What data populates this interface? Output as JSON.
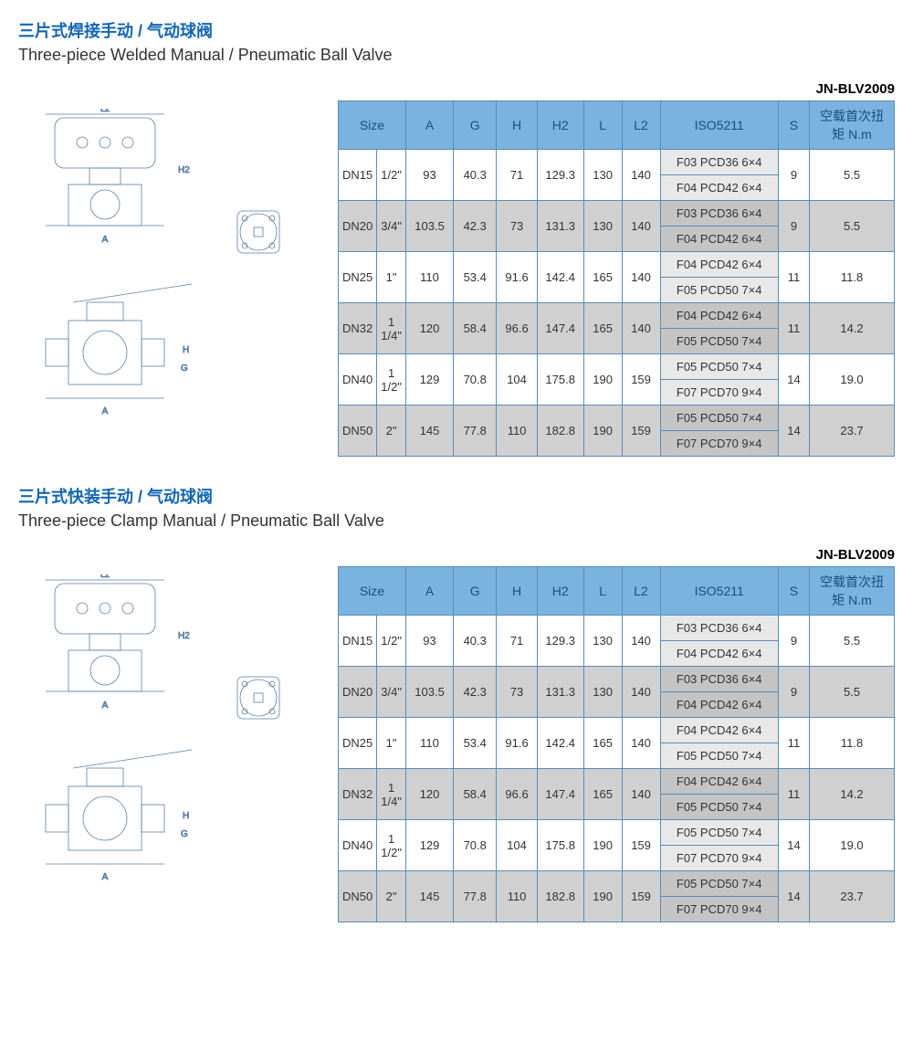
{
  "sections": [
    {
      "title_zh": "三片式焊接手动 / 气动球阀",
      "title_en": "Three-piece Welded Manual / Pneumatic Ball Valve",
      "model": "JN-BLV2009",
      "headers": [
        "Size",
        "",
        "A",
        "G",
        "H",
        "H2",
        "L",
        "L2",
        "ISO5211",
        "S",
        "空载首次扭矩 N.m"
      ],
      "rows": [
        {
          "alt": false,
          "size": "DN15",
          "inch": "1/2\"",
          "A": "93",
          "G": "40.3",
          "H": "71",
          "H2": "129.3",
          "L": "130",
          "L2": "140",
          "iso": [
            "F03  PCD36  6×4",
            "F04  PCD42  6×4"
          ],
          "S": "9",
          "torque": "5.5"
        },
        {
          "alt": true,
          "size": "DN20",
          "inch": "3/4\"",
          "A": "103.5",
          "G": "42.3",
          "H": "73",
          "H2": "131.3",
          "L": "130",
          "L2": "140",
          "iso": [
            "F03  PCD36  6×4",
            "F04  PCD42  6×4"
          ],
          "S": "9",
          "torque": "5.5"
        },
        {
          "alt": false,
          "size": "DN25",
          "inch": "1\"",
          "A": "110",
          "G": "53.4",
          "H": "91.6",
          "H2": "142.4",
          "L": "165",
          "L2": "140",
          "iso": [
            "F04  PCD42  6×4",
            "F05  PCD50  7×4"
          ],
          "S": "11",
          "torque": "11.8"
        },
        {
          "alt": true,
          "size": "DN32",
          "inch": "1 1/4\"",
          "A": "120",
          "G": "58.4",
          "H": "96.6",
          "H2": "147.4",
          "L": "165",
          "L2": "140",
          "iso": [
            "F04  PCD42  6×4",
            "F05  PCD50  7×4"
          ],
          "S": "11",
          "torque": "14.2"
        },
        {
          "alt": false,
          "size": "DN40",
          "inch": "1 1/2\"",
          "A": "129",
          "G": "70.8",
          "H": "104",
          "H2": "175.8",
          "L": "190",
          "L2": "159",
          "iso": [
            "F05  PCD50  7×4",
            "F07  PCD70  9×4"
          ],
          "S": "14",
          "torque": "19.0"
        },
        {
          "alt": true,
          "size": "DN50",
          "inch": "2\"",
          "A": "145",
          "G": "77.8",
          "H": "110",
          "H2": "182.8",
          "L": "190",
          "L2": "159",
          "iso": [
            "F05  PCD50  7×4",
            "F07  PCD70  9×4"
          ],
          "S": "14",
          "torque": "23.7"
        }
      ]
    },
    {
      "title_zh": "三片式快装手动 / 气动球阀",
      "title_en": "Three-piece Clamp Manual / Pneumatic Ball Valve",
      "model": "JN-BLV2009",
      "headers": [
        "Size",
        "",
        "A",
        "G",
        "H",
        "H2",
        "L",
        "L2",
        "ISO5211",
        "S",
        "空载首次扭矩 N.m"
      ],
      "rows": [
        {
          "alt": false,
          "size": "DN15",
          "inch": "1/2\"",
          "A": "93",
          "G": "40.3",
          "H": "71",
          "H2": "129.3",
          "L": "130",
          "L2": "140",
          "iso": [
            "F03  PCD36  6×4",
            "F04  PCD42  6×4"
          ],
          "S": "9",
          "torque": "5.5"
        },
        {
          "alt": true,
          "size": "DN20",
          "inch": "3/4\"",
          "A": "103.5",
          "G": "42.3",
          "H": "73",
          "H2": "131.3",
          "L": "130",
          "L2": "140",
          "iso": [
            "F03  PCD36  6×4",
            "F04  PCD42  6×4"
          ],
          "S": "9",
          "torque": "5.5"
        },
        {
          "alt": false,
          "size": "DN25",
          "inch": "1\"",
          "A": "110",
          "G": "53.4",
          "H": "91.6",
          "H2": "142.4",
          "L": "165",
          "L2": "140",
          "iso": [
            "F04  PCD42  6×4",
            "F05  PCD50  7×4"
          ],
          "S": "11",
          "torque": "11.8"
        },
        {
          "alt": true,
          "size": "DN32",
          "inch": "1 1/4\"",
          "A": "120",
          "G": "58.4",
          "H": "96.6",
          "H2": "147.4",
          "L": "165",
          "L2": "140",
          "iso": [
            "F04  PCD42  6×4",
            "F05  PCD50  7×4"
          ],
          "S": "11",
          "torque": "14.2"
        },
        {
          "alt": false,
          "size": "DN40",
          "inch": "1 1/2\"",
          "A": "129",
          "G": "70.8",
          "H": "104",
          "H2": "175.8",
          "L": "190",
          "L2": "159",
          "iso": [
            "F05  PCD50  7×4",
            "F07  PCD70  9×4"
          ],
          "S": "14",
          "torque": "19.0"
        },
        {
          "alt": true,
          "size": "DN50",
          "inch": "2\"",
          "A": "145",
          "G": "77.8",
          "H": "110",
          "H2": "182.8",
          "L": "190",
          "L2": "159",
          "iso": [
            "F05  PCD50  7×4",
            "F07  PCD70  9×4"
          ],
          "S": "14",
          "torque": "23.7"
        }
      ]
    }
  ],
  "col_widths": [
    "50",
    "44",
    "48",
    "44",
    "40",
    "46",
    "38",
    "38",
    "150",
    "30",
    "110"
  ],
  "colors": {
    "header_bg": "#7ab3e0",
    "header_fg": "#1a4d7a",
    "border": "#5b8cb5",
    "alt_bg": "#d0d0d0",
    "title_color": "#1266b4"
  }
}
